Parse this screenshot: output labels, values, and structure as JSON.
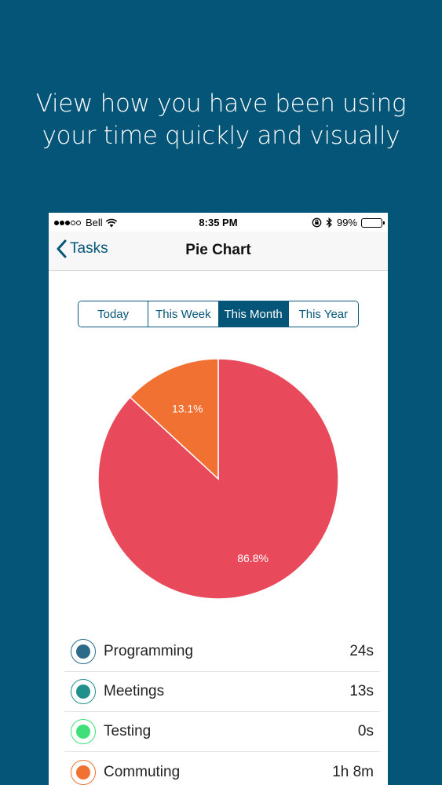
{
  "headline": {
    "line1": "View how you have been using",
    "line2": "your time quickly and visually"
  },
  "statusbar": {
    "carrier": "Bell",
    "time": "8:35 PM",
    "battery": "99%",
    "battery_level": 0.99
  },
  "navbar": {
    "back_label": "Tasks",
    "title": "Pie Chart"
  },
  "segments": [
    {
      "label": "Today",
      "active": false
    },
    {
      "label": "This Week",
      "active": false
    },
    {
      "label": "This Month",
      "active": true
    },
    {
      "label": "This Year",
      "active": false
    }
  ],
  "chart_data": {
    "type": "pie",
    "slices": [
      {
        "label": "86.8%",
        "value": 86.8,
        "color": "#e8495b"
      },
      {
        "label": "13.1%",
        "value": 13.1,
        "color": "#f07131"
      }
    ]
  },
  "legend": [
    {
      "name": "Programming",
      "value": "24s",
      "color": "#2c6a8a"
    },
    {
      "name": "Meetings",
      "value": "13s",
      "color": "#21908d"
    },
    {
      "name": "Testing",
      "value": "0s",
      "color": "#3fe07a"
    },
    {
      "name": "Commuting",
      "value": "1h 8m",
      "color": "#f07131"
    }
  ]
}
